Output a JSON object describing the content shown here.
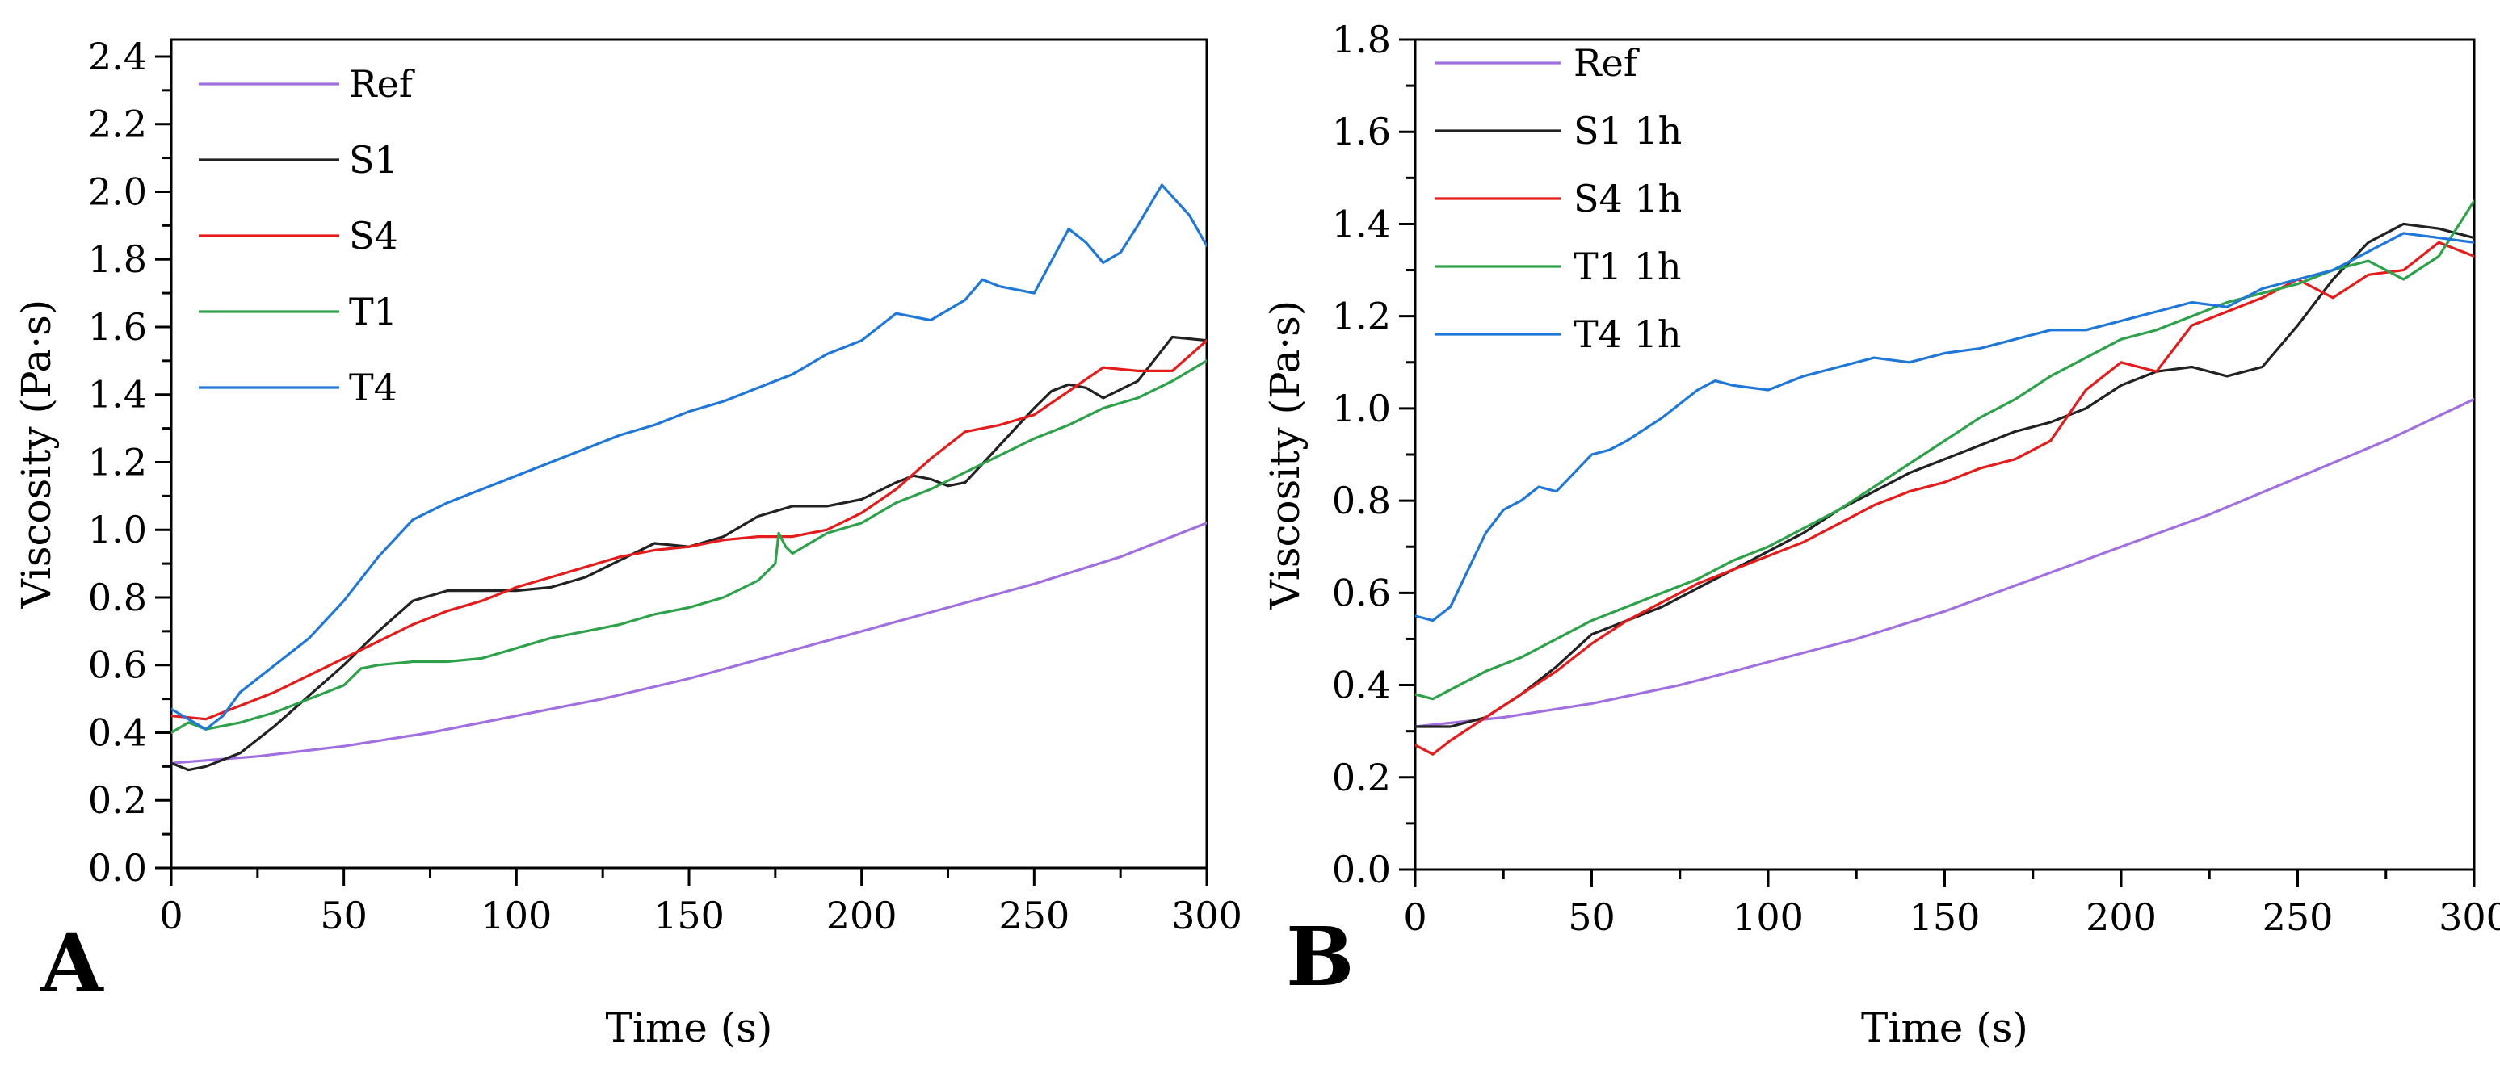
{
  "chart_data": [
    {
      "panel": "A",
      "type": "line",
      "xlabel": "Time (s)",
      "ylabel": "Viscosity (Pa·s)",
      "xlim": [
        0,
        300
      ],
      "ylim": [
        0,
        2.45
      ],
      "xticks": [
        "0",
        "50",
        "100",
        "150",
        "200",
        "250",
        "300"
      ],
      "yticks": [
        "0.0",
        "0.2",
        "0.4",
        "0.6",
        "0.8",
        "1.0",
        "1.2",
        "1.4",
        "1.6",
        "1.8",
        "2.0",
        "2.2",
        "2.4"
      ],
      "series": [
        {
          "name": "Ref",
          "color": "#a070e0",
          "x": [
            0,
            25,
            50,
            75,
            100,
            125,
            150,
            175,
            200,
            225,
            250,
            275,
            300
          ],
          "y": [
            0.31,
            0.33,
            0.36,
            0.4,
            0.45,
            0.5,
            0.56,
            0.63,
            0.7,
            0.77,
            0.84,
            0.92,
            1.02
          ]
        },
        {
          "name": "S1",
          "color": "#222222",
          "x": [
            0,
            5,
            10,
            20,
            30,
            40,
            50,
            60,
            70,
            80,
            90,
            100,
            110,
            120,
            130,
            140,
            150,
            160,
            170,
            180,
            190,
            200,
            210,
            215,
            220,
            225,
            230,
            240,
            250,
            255,
            260,
            265,
            270,
            280,
            290,
            300
          ],
          "y": [
            0.31,
            0.29,
            0.3,
            0.34,
            0.42,
            0.51,
            0.6,
            0.7,
            0.79,
            0.82,
            0.82,
            0.82,
            0.83,
            0.86,
            0.91,
            0.96,
            0.95,
            0.98,
            1.04,
            1.07,
            1.07,
            1.09,
            1.14,
            1.16,
            1.15,
            1.13,
            1.14,
            1.25,
            1.36,
            1.41,
            1.43,
            1.42,
            1.39,
            1.44,
            1.57,
            1.56
          ]
        },
        {
          "name": "S4",
          "color": "#e51c1c",
          "x": [
            0,
            10,
            20,
            30,
            40,
            50,
            60,
            70,
            80,
            90,
            100,
            110,
            120,
            130,
            140,
            150,
            160,
            170,
            180,
            190,
            200,
            210,
            220,
            230,
            240,
            250,
            260,
            270,
            280,
            290,
            300
          ],
          "y": [
            0.45,
            0.44,
            0.48,
            0.52,
            0.57,
            0.62,
            0.67,
            0.72,
            0.76,
            0.79,
            0.83,
            0.86,
            0.89,
            0.92,
            0.94,
            0.95,
            0.97,
            0.98,
            0.98,
            1.0,
            1.05,
            1.12,
            1.21,
            1.29,
            1.31,
            1.34,
            1.41,
            1.48,
            1.47,
            1.47,
            1.56
          ]
        },
        {
          "name": "T1",
          "color": "#2ea24a",
          "x": [
            0,
            5,
            10,
            20,
            30,
            40,
            50,
            55,
            60,
            70,
            80,
            90,
            100,
            110,
            120,
            130,
            140,
            150,
            160,
            170,
            175,
            176,
            178,
            180,
            190,
            200,
            210,
            220,
            230,
            240,
            250,
            260,
            270,
            280,
            290,
            300
          ],
          "y": [
            0.4,
            0.43,
            0.41,
            0.43,
            0.46,
            0.5,
            0.54,
            0.59,
            0.6,
            0.61,
            0.61,
            0.62,
            0.65,
            0.68,
            0.7,
            0.72,
            0.75,
            0.77,
            0.8,
            0.85,
            0.9,
            0.99,
            0.95,
            0.93,
            0.99,
            1.02,
            1.08,
            1.12,
            1.17,
            1.22,
            1.27,
            1.31,
            1.36,
            1.39,
            1.44,
            1.5
          ]
        },
        {
          "name": "T4",
          "color": "#1f78d8",
          "x": [
            0,
            5,
            10,
            15,
            20,
            30,
            40,
            50,
            60,
            70,
            80,
            90,
            100,
            110,
            120,
            130,
            140,
            150,
            160,
            170,
            180,
            190,
            200,
            210,
            220,
            230,
            235,
            240,
            250,
            260,
            265,
            270,
            275,
            280,
            287,
            295,
            300
          ],
          "y": [
            0.47,
            0.44,
            0.41,
            0.45,
            0.52,
            0.6,
            0.68,
            0.79,
            0.92,
            1.03,
            1.08,
            1.12,
            1.16,
            1.2,
            1.24,
            1.28,
            1.31,
            1.35,
            1.38,
            1.42,
            1.46,
            1.52,
            1.56,
            1.64,
            1.62,
            1.68,
            1.74,
            1.72,
            1.7,
            1.89,
            1.85,
            1.79,
            1.82,
            1.9,
            2.02,
            1.93,
            1.84
          ]
        }
      ]
    },
    {
      "panel": "B",
      "type": "line",
      "xlabel": "Time (s)",
      "ylabel": "Viscosity (Pa·s)",
      "xlim": [
        0,
        300
      ],
      "ylim": [
        0,
        1.8
      ],
      "xticks": [
        "0",
        "50",
        "100",
        "150",
        "200",
        "250",
        "300"
      ],
      "yticks": [
        "0.0",
        "0.2",
        "0.4",
        "0.6",
        "0.8",
        "1.0",
        "1.2",
        "1.4",
        "1.6",
        "1.8"
      ],
      "series": [
        {
          "name": "Ref",
          "color": "#a070e0",
          "x": [
            0,
            25,
            50,
            75,
            100,
            125,
            150,
            175,
            200,
            225,
            250,
            275,
            300
          ],
          "y": [
            0.31,
            0.33,
            0.36,
            0.4,
            0.45,
            0.5,
            0.56,
            0.63,
            0.7,
            0.77,
            0.85,
            0.93,
            1.02
          ]
        },
        {
          "name": "S1 1h",
          "color": "#222222",
          "x": [
            0,
            10,
            20,
            30,
            40,
            50,
            60,
            70,
            80,
            90,
            100,
            110,
            120,
            130,
            140,
            150,
            160,
            170,
            180,
            190,
            200,
            210,
            220,
            230,
            240,
            250,
            260,
            270,
            280,
            290,
            300
          ],
          "y": [
            0.31,
            0.31,
            0.33,
            0.38,
            0.44,
            0.51,
            0.54,
            0.57,
            0.61,
            0.65,
            0.69,
            0.73,
            0.78,
            0.82,
            0.86,
            0.89,
            0.92,
            0.95,
            0.97,
            1.0,
            1.05,
            1.08,
            1.09,
            1.07,
            1.09,
            1.18,
            1.28,
            1.36,
            1.4,
            1.39,
            1.37
          ]
        },
        {
          "name": "S4 1h",
          "color": "#e51c1c",
          "x": [
            0,
            5,
            10,
            20,
            30,
            40,
            50,
            60,
            70,
            80,
            90,
            100,
            110,
            120,
            130,
            140,
            150,
            160,
            170,
            180,
            190,
            200,
            210,
            220,
            230,
            240,
            250,
            260,
            270,
            280,
            290,
            300
          ],
          "y": [
            0.27,
            0.25,
            0.28,
            0.33,
            0.38,
            0.43,
            0.49,
            0.54,
            0.58,
            0.62,
            0.65,
            0.68,
            0.71,
            0.75,
            0.79,
            0.82,
            0.84,
            0.87,
            0.89,
            0.93,
            1.04,
            1.1,
            1.08,
            1.18,
            1.21,
            1.24,
            1.28,
            1.24,
            1.29,
            1.3,
            1.36,
            1.33
          ]
        },
        {
          "name": "T1 1h",
          "color": "#2ea24a",
          "x": [
            0,
            5,
            10,
            20,
            30,
            40,
            50,
            60,
            70,
            80,
            90,
            100,
            110,
            120,
            130,
            140,
            150,
            160,
            170,
            180,
            190,
            200,
            210,
            220,
            230,
            240,
            250,
            260,
            270,
            280,
            290,
            300
          ],
          "y": [
            0.38,
            0.37,
            0.39,
            0.43,
            0.46,
            0.5,
            0.54,
            0.57,
            0.6,
            0.63,
            0.67,
            0.7,
            0.74,
            0.78,
            0.83,
            0.88,
            0.93,
            0.98,
            1.02,
            1.07,
            1.11,
            1.15,
            1.17,
            1.2,
            1.23,
            1.25,
            1.27,
            1.3,
            1.32,
            1.28,
            1.33,
            1.45
          ]
        },
        {
          "name": "T4 1h",
          "color": "#1f78d8",
          "x": [
            0,
            5,
            10,
            15,
            20,
            25,
            30,
            35,
            40,
            45,
            50,
            55,
            60,
            70,
            80,
            85,
            90,
            100,
            110,
            120,
            130,
            140,
            150,
            160,
            170,
            180,
            190,
            200,
            210,
            220,
            230,
            240,
            250,
            260,
            270,
            280,
            290,
            300
          ],
          "y": [
            0.55,
            0.54,
            0.57,
            0.65,
            0.73,
            0.78,
            0.8,
            0.83,
            0.82,
            0.86,
            0.9,
            0.91,
            0.93,
            0.98,
            1.04,
            1.06,
            1.05,
            1.04,
            1.07,
            1.09,
            1.11,
            1.1,
            1.12,
            1.13,
            1.15,
            1.17,
            1.17,
            1.19,
            1.21,
            1.23,
            1.22,
            1.26,
            1.28,
            1.3,
            1.34,
            1.38,
            1.37,
            1.36
          ]
        }
      ]
    }
  ],
  "panels": {
    "a": {
      "letter": "A"
    },
    "b": {
      "letter": "B"
    }
  }
}
